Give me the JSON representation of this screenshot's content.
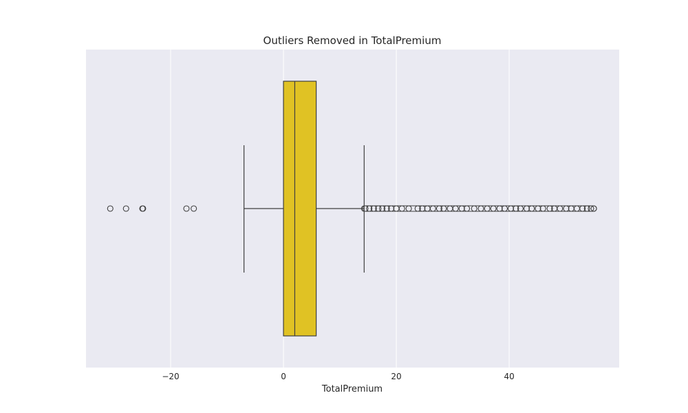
{
  "chart_data": {
    "type": "box",
    "title": "Outliers Removed in TotalPremium",
    "xlabel": "TotalPremium",
    "ylabel": "",
    "xlim": [
      -35,
      59.5
    ],
    "xticks": [
      -20,
      0,
      20,
      40
    ],
    "xtick_labels": [
      "−20",
      "0",
      "20",
      "40"
    ],
    "grid": true,
    "orientation": "horizontal",
    "box_color": "#e0c224",
    "line_color": "#3f3f3f",
    "background_color": "#eaeaf2",
    "stats": {
      "whisker_low": -7.0,
      "q1": 0.0,
      "median": 2.0,
      "q3": 5.8,
      "whisker_high": 14.3
    },
    "outliers_low": [
      -30.7,
      -27.9,
      -25.0,
      -24.9,
      -17.2,
      -15.9
    ],
    "outliers_high_dense_range": [
      14.3,
      55.0
    ],
    "outliers_high": [
      14.5,
      15.2,
      16.0,
      16.8,
      17.5,
      18.3,
      19.1,
      20.0,
      21.0,
      22.2,
      23.8,
      24.6,
      25.5,
      26.5,
      27.6,
      28.4,
      29.5,
      30.5,
      31.6,
      32.5,
      33.8,
      35.0,
      36.1,
      37.2,
      38.3,
      39.2,
      40.3,
      41.2,
      42.0,
      43.1,
      44.0,
      45.1,
      46.0,
      47.2,
      48.0,
      49.0,
      50.1,
      51.0,
      52.0,
      53.0,
      53.8,
      54.5,
      55.0
    ]
  }
}
